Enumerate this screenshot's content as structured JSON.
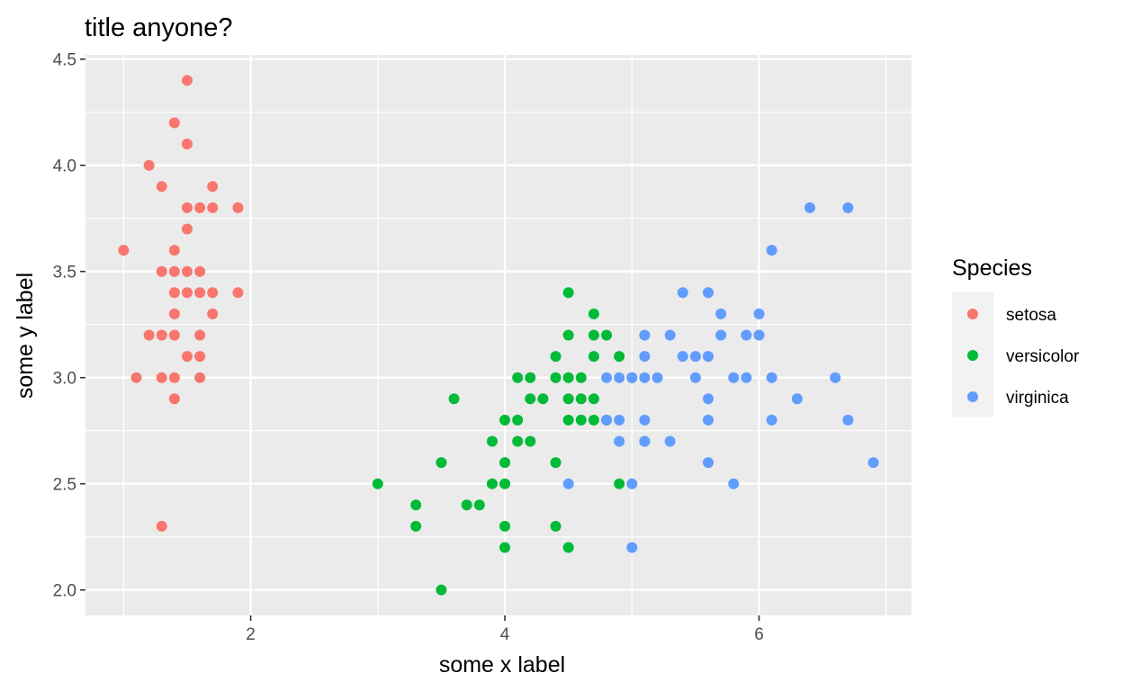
{
  "chart_data": {
    "type": "scatter",
    "title": "title anyone?",
    "xlabel": "some x label",
    "ylabel": "some y label",
    "xlim": [
      0.7,
      7.2
    ],
    "ylim": [
      1.88,
      4.52
    ],
    "x_ticks": [
      2,
      4,
      6
    ],
    "y_ticks": [
      2.0,
      2.5,
      3.0,
      3.5,
      4.0,
      4.5
    ],
    "x_tick_labels": [
      "2",
      "4",
      "6"
    ],
    "y_tick_labels": [
      "2.0",
      "2.5",
      "3.0",
      "3.5",
      "4.0",
      "4.5"
    ],
    "x_minor_gridlines": [
      1,
      3,
      5,
      7
    ],
    "y_minor_gridlines": [
      2.25,
      2.75,
      3.25,
      3.75,
      4.25
    ],
    "grid": true,
    "legend": {
      "title": "Species",
      "placement": "right"
    },
    "series": [
      {
        "name": "setosa",
        "color": "#F8766D",
        "points": [
          [
            1.0,
            3.6
          ],
          [
            1.1,
            3.0
          ],
          [
            1.2,
            4.0
          ],
          [
            1.2,
            3.2
          ],
          [
            1.3,
            3.9
          ],
          [
            1.3,
            3.5
          ],
          [
            1.3,
            3.2
          ],
          [
            1.3,
            3.0
          ],
          [
            1.3,
            2.3
          ],
          [
            1.4,
            4.2
          ],
          [
            1.4,
            3.6
          ],
          [
            1.4,
            3.5
          ],
          [
            1.4,
            3.4
          ],
          [
            1.4,
            3.3
          ],
          [
            1.4,
            3.2
          ],
          [
            1.4,
            3.0
          ],
          [
            1.4,
            2.9
          ],
          [
            1.5,
            4.4
          ],
          [
            1.5,
            4.1
          ],
          [
            1.5,
            3.8
          ],
          [
            1.5,
            3.7
          ],
          [
            1.5,
            3.5
          ],
          [
            1.5,
            3.4
          ],
          [
            1.5,
            3.1
          ],
          [
            1.6,
            3.8
          ],
          [
            1.6,
            3.5
          ],
          [
            1.6,
            3.4
          ],
          [
            1.6,
            3.2
          ],
          [
            1.6,
            3.1
          ],
          [
            1.6,
            3.0
          ],
          [
            1.7,
            3.9
          ],
          [
            1.7,
            3.8
          ],
          [
            1.7,
            3.4
          ],
          [
            1.7,
            3.3
          ],
          [
            1.9,
            3.8
          ],
          [
            1.9,
            3.4
          ]
        ]
      },
      {
        "name": "versicolor",
        "color": "#00BA38",
        "points": [
          [
            3.0,
            2.5
          ],
          [
            3.3,
            2.4
          ],
          [
            3.3,
            2.3
          ],
          [
            3.5,
            2.6
          ],
          [
            3.5,
            2.0
          ],
          [
            3.6,
            2.9
          ],
          [
            3.7,
            2.4
          ],
          [
            3.8,
            2.4
          ],
          [
            3.9,
            2.7
          ],
          [
            3.9,
            2.5
          ],
          [
            4.0,
            2.8
          ],
          [
            4.0,
            2.6
          ],
          [
            4.0,
            2.5
          ],
          [
            4.0,
            2.3
          ],
          [
            4.0,
            2.2
          ],
          [
            4.1,
            3.0
          ],
          [
            4.1,
            2.8
          ],
          [
            4.1,
            2.7
          ],
          [
            4.2,
            3.0
          ],
          [
            4.2,
            2.9
          ],
          [
            4.2,
            2.7
          ],
          [
            4.3,
            2.9
          ],
          [
            4.4,
            3.1
          ],
          [
            4.4,
            3.0
          ],
          [
            4.4,
            2.6
          ],
          [
            4.4,
            2.3
          ],
          [
            4.5,
            3.4
          ],
          [
            4.5,
            3.2
          ],
          [
            4.5,
            3.0
          ],
          [
            4.5,
            2.9
          ],
          [
            4.5,
            2.8
          ],
          [
            4.5,
            2.2
          ],
          [
            4.6,
            3.0
          ],
          [
            4.6,
            2.9
          ],
          [
            4.6,
            2.8
          ],
          [
            4.7,
            3.3
          ],
          [
            4.7,
            3.2
          ],
          [
            4.7,
            3.1
          ],
          [
            4.7,
            2.9
          ],
          [
            4.7,
            2.8
          ],
          [
            4.8,
            3.2
          ],
          [
            4.8,
            2.8
          ],
          [
            4.9,
            3.1
          ],
          [
            4.9,
            2.5
          ],
          [
            5.0,
            3.0
          ],
          [
            5.1,
            2.7
          ]
        ]
      },
      {
        "name": "virginica",
        "color": "#619CFF",
        "points": [
          [
            4.5,
            2.5
          ],
          [
            4.8,
            3.0
          ],
          [
            4.8,
            2.8
          ],
          [
            4.9,
            3.0
          ],
          [
            4.9,
            2.8
          ],
          [
            4.9,
            2.7
          ],
          [
            5.0,
            3.0
          ],
          [
            5.0,
            2.5
          ],
          [
            5.0,
            2.2
          ],
          [
            5.1,
            3.2
          ],
          [
            5.1,
            3.1
          ],
          [
            5.1,
            3.0
          ],
          [
            5.1,
            2.8
          ],
          [
            5.1,
            2.7
          ],
          [
            5.2,
            3.0
          ],
          [
            5.3,
            3.2
          ],
          [
            5.3,
            2.7
          ],
          [
            5.4,
            3.4
          ],
          [
            5.4,
            3.1
          ],
          [
            5.5,
            3.1
          ],
          [
            5.5,
            3.0
          ],
          [
            5.6,
            3.4
          ],
          [
            5.6,
            3.1
          ],
          [
            5.6,
            2.9
          ],
          [
            5.6,
            2.8
          ],
          [
            5.6,
            2.6
          ],
          [
            5.7,
            3.3
          ],
          [
            5.7,
            3.2
          ],
          [
            5.8,
            3.0
          ],
          [
            5.8,
            2.5
          ],
          [
            5.9,
            3.2
          ],
          [
            5.9,
            3.0
          ],
          [
            6.0,
            3.3
          ],
          [
            6.0,
            3.2
          ],
          [
            6.1,
            3.6
          ],
          [
            6.1,
            3.0
          ],
          [
            6.1,
            2.8
          ],
          [
            6.3,
            2.9
          ],
          [
            6.4,
            3.8
          ],
          [
            6.6,
            3.0
          ],
          [
            6.7,
            3.8
          ],
          [
            6.7,
            2.8
          ],
          [
            6.9,
            2.6
          ]
        ]
      }
    ]
  }
}
